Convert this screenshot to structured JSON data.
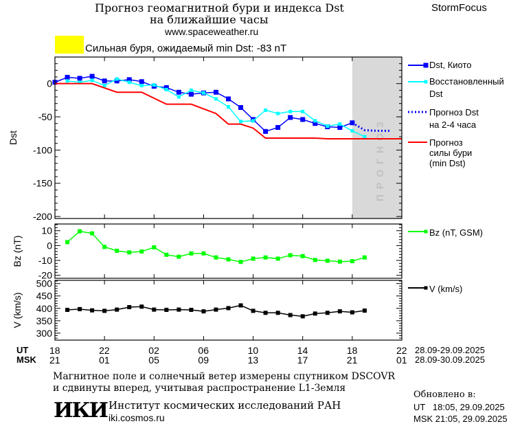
{
  "header": {
    "title_line1": "Прогноз геомагнитной бури и индекса Dst",
    "title_line2": "на ближайшие часы",
    "url": "www.spaceweather.ru",
    "brand": "StormFocus",
    "storm_status": "Сильная буря, ожидаемый min Dst: -83 nT",
    "storm_color": "#ffff00"
  },
  "forecast_label": "ПРОГНОЗ",
  "legend": {
    "dst_kyoto": "Dst, Киото",
    "restored_1": "Восстановленный",
    "restored_2": "Dst",
    "forecast_1": "Прогноз Dst",
    "forecast_2": "на 2-4 часа",
    "storm_1": "Прогноз",
    "storm_2": "силы бури",
    "storm_3": "(min Dst)",
    "bz": "Bz (nT, GSM)",
    "v": "V (km/s)"
  },
  "time_axis": {
    "ut_label": "UT",
    "msk_label": "MSK",
    "ut_ticks": [
      "18",
      "22",
      "02",
      "06",
      "10",
      "14",
      "18",
      "22"
    ],
    "msk_ticks": [
      "21",
      "01",
      "05",
      "09",
      "13",
      "17",
      "21",
      "01"
    ],
    "ut_range": "28.09-29.09.2025",
    "msk_range": "28.09-30.09.2025"
  },
  "footer": {
    "note_line1": "Магнитное поле и солнечный ветер измерены спутником DSCOVR",
    "note_line2": "и сдвинуты вперед, учитывая распространение L1-Земля",
    "logo": "ИКИ",
    "institute": "Институт космических исследований РАН",
    "institute_url": "iki.cosmos.ru",
    "updated_label": "Обновлено в:",
    "updated_ut": "UT   18:05, 29.09.2025",
    "updated_msk": "MSK 21:05, 29.09.2025"
  },
  "chart_data": [
    {
      "type": "line",
      "ylabel": "Dst",
      "x_unit": "hours since 18 UT 28.09",
      "xlim": [
        0,
        28
      ],
      "ylim": [
        -203,
        40
      ],
      "yticks": [
        0,
        -50,
        -100,
        -150,
        -200
      ],
      "forecast_region": [
        24,
        28
      ],
      "series": [
        {
          "name": "Dst, Киото",
          "color": "#0000ff",
          "marker": "square",
          "x": [
            0,
            1,
            2,
            3,
            4,
            5,
            6,
            7,
            8,
            9,
            10,
            11,
            12,
            13,
            14,
            15,
            16,
            17,
            18,
            19,
            20,
            21,
            22,
            23,
            24
          ],
          "y": [
            2,
            9.5,
            8,
            11,
            4,
            4,
            6,
            3,
            -4,
            -6,
            -13,
            -16,
            -14,
            -13,
            -23,
            -36,
            -54,
            -72,
            -66,
            -51,
            -54,
            -60,
            -65,
            -66,
            -59
          ]
        },
        {
          "name": "Восстановленный Dst",
          "color": "#00ffff",
          "marker": "square",
          "x": [
            1,
            2,
            3,
            4,
            5,
            6,
            7,
            8,
            9,
            10,
            11,
            12,
            13,
            14,
            15,
            16,
            17,
            18,
            19,
            20,
            21,
            22,
            23,
            24,
            25
          ],
          "y": [
            4,
            2,
            5,
            -3,
            7,
            2,
            -3,
            -2,
            -9,
            -20,
            -10,
            -14,
            -23,
            -35,
            -57,
            -56,
            -40,
            -45,
            -42,
            -42,
            -56,
            -64,
            -61,
            -71,
            -80
          ]
        },
        {
          "name": "Прогноз Dst на 2-4 часа",
          "color": "#0000ff",
          "dotted": true,
          "x": [
            24,
            25,
            26,
            27
          ],
          "y": [
            -59,
            -70,
            -71,
            -71
          ]
        },
        {
          "name": "Прогноз силы бури (min Dst)",
          "color": "#ff0000",
          "x": [
            0,
            3,
            5,
            7,
            9,
            11,
            13,
            14,
            15,
            16,
            17,
            21,
            22,
            28
          ],
          "y": [
            0,
            0,
            -13,
            -13,
            -31,
            -31,
            -45,
            -61,
            -61,
            -67,
            -82,
            -82,
            -83,
            -83
          ]
        }
      ]
    },
    {
      "type": "line",
      "ylabel": "Bz (nT)",
      "xlim": [
        0,
        28
      ],
      "ylim": [
        -22,
        14.5
      ],
      "yticks": [
        10,
        0,
        -10,
        -20
      ],
      "series": [
        {
          "name": "Bz (nT, GSM)",
          "color": "#00ff00",
          "marker": "square",
          "x": [
            1,
            2,
            3,
            4,
            5,
            6,
            7,
            8,
            9,
            10,
            11,
            12,
            13,
            14,
            15,
            16,
            17,
            18,
            19,
            20,
            21,
            22,
            23,
            24,
            25
          ],
          "y": [
            2.3,
            9.6,
            8.2,
            -0.9,
            -3.5,
            -4.6,
            -4,
            -1.2,
            -6.2,
            -7.5,
            -5.3,
            -5.3,
            -8,
            -9.3,
            -11,
            -8.8,
            -8,
            -8.8,
            -6.5,
            -7.1,
            -9.7,
            -10.2,
            -10.8,
            -10.5,
            -8
          ]
        }
      ]
    },
    {
      "type": "line",
      "ylabel": "V (km/s)",
      "xlim": [
        0,
        28
      ],
      "ylim": [
        272,
        513
      ],
      "yticks": [
        500,
        450,
        400,
        350,
        300
      ],
      "series": [
        {
          "name": "V (km/s)",
          "color": "#000000",
          "marker": "square",
          "x": [
            1,
            2,
            3,
            4,
            5,
            6,
            7,
            8,
            9,
            10,
            11,
            12,
            13,
            14,
            15,
            16,
            17,
            18,
            19,
            20,
            21,
            22,
            23,
            24,
            25
          ],
          "y": [
            394,
            397,
            392,
            390,
            395,
            405,
            407,
            395,
            394,
            395,
            394,
            388,
            395,
            401,
            412,
            390,
            382,
            382,
            373,
            368,
            379,
            382,
            388,
            384,
            391
          ]
        }
      ]
    }
  ]
}
